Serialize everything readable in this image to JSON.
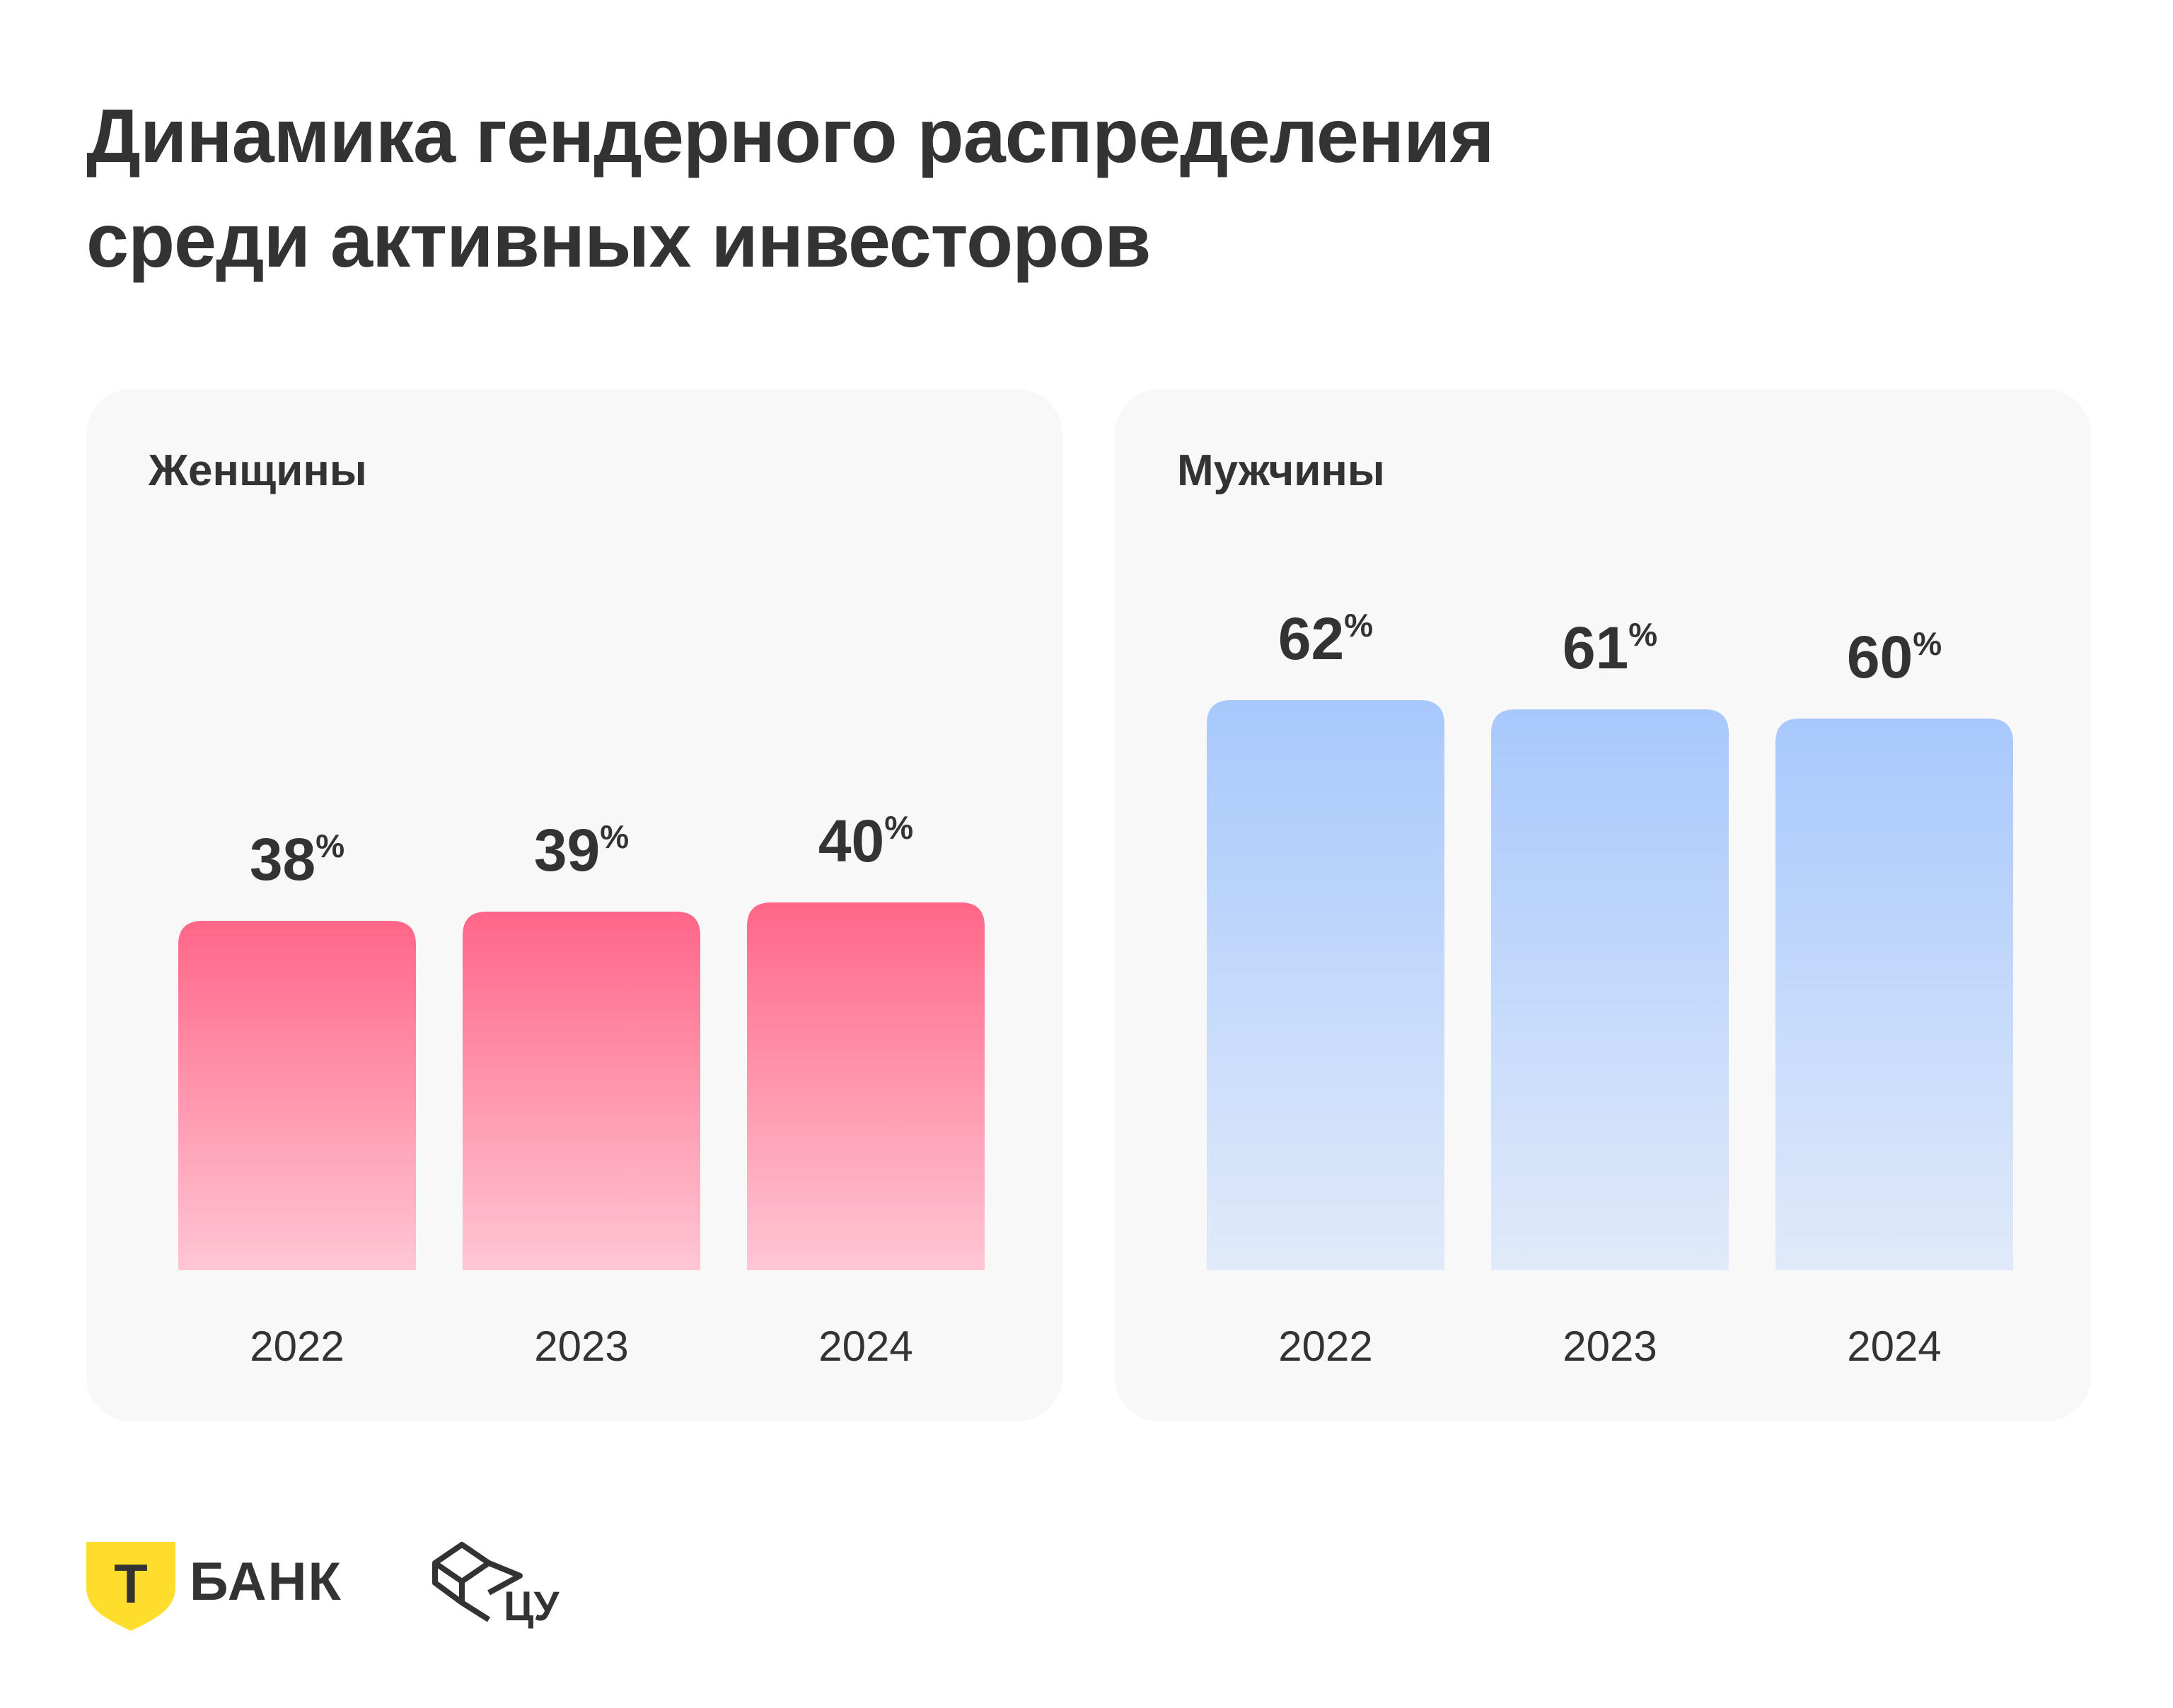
{
  "title": {
    "line1": "Динамика гендерного распределения",
    "line2": "среди активных инвесторов"
  },
  "chart_data": [
    {
      "type": "bar",
      "title": "Женщины",
      "categories": [
        "2022",
        "2023",
        "2024"
      ],
      "values": [
        38,
        39,
        40
      ],
      "value_labels": [
        "38",
        "39",
        "40"
      ],
      "unit": "%",
      "ylim": [
        0,
        100
      ],
      "gradient": {
        "top": "#ff6688",
        "bottom": "#ffc6d5"
      }
    },
    {
      "type": "bar",
      "title": "Мужчины",
      "categories": [
        "2022",
        "2023",
        "2024"
      ],
      "values": [
        62,
        61,
        60
      ],
      "value_labels": [
        "62",
        "61",
        "60"
      ],
      "unit": "%",
      "ylim": [
        0,
        100
      ],
      "gradient": {
        "top": "#a8c8fc",
        "bottom": "#e0eafa"
      }
    }
  ],
  "footer": {
    "bank_logo_letter": "Т",
    "bank_name": "БАНК",
    "cu_name": "ЦУ",
    "brand_color": "#ffdd2d"
  }
}
